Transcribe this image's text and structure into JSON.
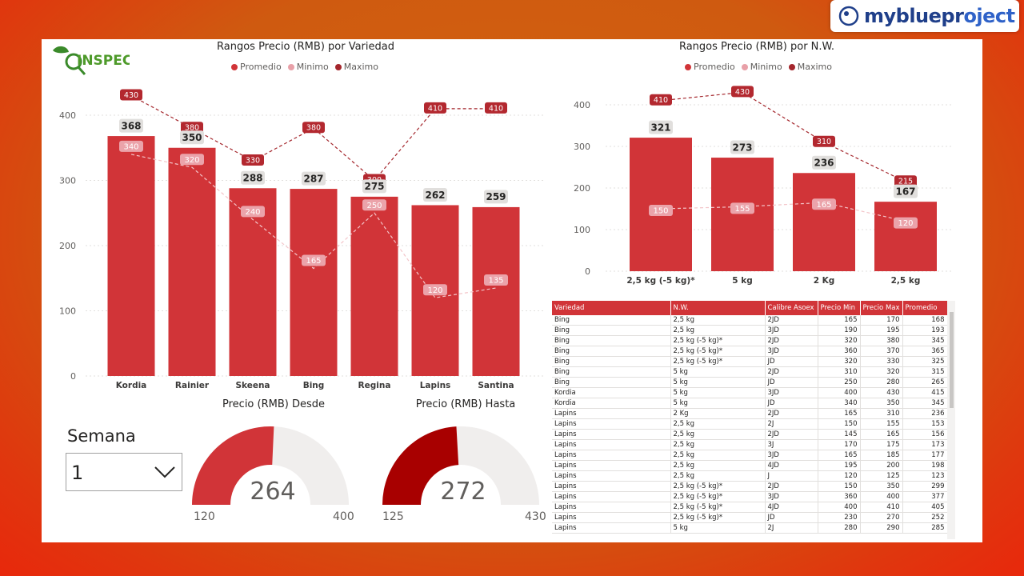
{
  "brand": {
    "name": "mybluepr",
    "name_bold": "oject"
  },
  "logo": {
    "text": "INSPEC"
  },
  "chart1": {
    "title": "Rangos Precio (RMB) por Variedad",
    "legend": [
      {
        "label": "Promedio",
        "color": "#d13438"
      },
      {
        "label": "Minimo",
        "color": "#e8a0a8"
      },
      {
        "label": "Maximo",
        "color": "#a4262c"
      }
    ]
  },
  "chart2": {
    "title": "Rangos Precio (RMB) por N.W.",
    "legend": [
      {
        "label": "Promedio",
        "color": "#d13438"
      },
      {
        "label": "Minimo",
        "color": "#e8a0a8"
      },
      {
        "label": "Maximo",
        "color": "#a4262c"
      }
    ]
  },
  "chart_data": [
    {
      "type": "bar",
      "title": "Rangos Precio (RMB) por Variedad",
      "categories": [
        "Kordia",
        "Rainier",
        "Skeena",
        "Bing",
        "Regina",
        "Lapins",
        "Santina"
      ],
      "series": [
        {
          "name": "Promedio",
          "type": "bar",
          "values": [
            368,
            350,
            288,
            287,
            275,
            262,
            259
          ]
        },
        {
          "name": "Minimo",
          "type": "line",
          "values": [
            340,
            320,
            240,
            165,
            250,
            120,
            135
          ]
        },
        {
          "name": "Maximo",
          "type": "line",
          "values": [
            430,
            380,
            330,
            380,
            300,
            410,
            410
          ]
        }
      ],
      "ylim": [
        0,
        430
      ],
      "yticks": [
        0,
        100,
        200,
        300,
        400
      ],
      "grid": true,
      "legend_position": "top"
    },
    {
      "type": "bar",
      "title": "Rangos Precio (RMB) por N.W.",
      "categories": [
        "2,5 kg (-5 kg)*",
        "5 kg",
        "2 Kg",
        "2,5 kg"
      ],
      "series": [
        {
          "name": "Promedio",
          "type": "bar",
          "values": [
            321,
            273,
            236,
            167
          ]
        },
        {
          "name": "Minimo",
          "type": "line",
          "values": [
            150,
            155,
            165,
            120
          ]
        },
        {
          "name": "Maximo",
          "type": "line",
          "values": [
            410,
            430,
            310,
            215
          ]
        }
      ],
      "ylim": [
        0,
        430
      ],
      "yticks": [
        0,
        100,
        200,
        300,
        400
      ],
      "grid": true,
      "legend_position": "top"
    }
  ],
  "slicer": {
    "label": "Semana",
    "value": "1"
  },
  "gauges": [
    {
      "title": "Precio (RMB) Desde",
      "value": 264,
      "min": 120,
      "max": 400,
      "color": "#d13438",
      "track": "#f0eeed"
    },
    {
      "title": "Precio (RMB) Hasta",
      "value": 272,
      "min": 125,
      "max": 430,
      "color": "#a80000",
      "track": "#f0eeed"
    }
  ],
  "table": {
    "columns": [
      "Variedad",
      "N.W.",
      "Calibre Asoex",
      "Precio Min",
      "Precio Max",
      "Promedio"
    ],
    "rows": [
      [
        "Bing",
        "2,5 kg",
        "2JD",
        "165",
        "170",
        "168"
      ],
      [
        "Bing",
        "2,5 kg",
        "3JD",
        "190",
        "195",
        "193"
      ],
      [
        "Bing",
        "2,5 kg (-5 kg)*",
        "2JD",
        "320",
        "380",
        "345"
      ],
      [
        "Bing",
        "2,5 kg (-5 kg)*",
        "3JD",
        "360",
        "370",
        "365"
      ],
      [
        "Bing",
        "2,5 kg (-5 kg)*",
        "JD",
        "320",
        "330",
        "325"
      ],
      [
        "Bing",
        "5 kg",
        "2JD",
        "310",
        "320",
        "315"
      ],
      [
        "Bing",
        "5 kg",
        "JD",
        "250",
        "280",
        "265"
      ],
      [
        "Kordia",
        "5 kg",
        "3JD",
        "400",
        "430",
        "415"
      ],
      [
        "Kordia",
        "5 kg",
        "JD",
        "340",
        "350",
        "345"
      ],
      [
        "Lapins",
        "2 Kg",
        "2JD",
        "165",
        "310",
        "236"
      ],
      [
        "Lapins",
        "2,5 kg",
        "2J",
        "150",
        "155",
        "153"
      ],
      [
        "Lapins",
        "2,5 kg",
        "2JD",
        "145",
        "165",
        "156"
      ],
      [
        "Lapins",
        "2,5 kg",
        "3J",
        "170",
        "175",
        "173"
      ],
      [
        "Lapins",
        "2,5 kg",
        "3JD",
        "165",
        "185",
        "177"
      ],
      [
        "Lapins",
        "2,5 kg",
        "4JD",
        "195",
        "200",
        "198"
      ],
      [
        "Lapins",
        "2,5 kg",
        "J",
        "120",
        "125",
        "123"
      ],
      [
        "Lapins",
        "2,5 kg (-5 kg)*",
        "2JD",
        "150",
        "350",
        "299"
      ],
      [
        "Lapins",
        "2,5 kg (-5 kg)*",
        "3JD",
        "360",
        "400",
        "377"
      ],
      [
        "Lapins",
        "2,5 kg (-5 kg)*",
        "4JD",
        "400",
        "410",
        "405"
      ],
      [
        "Lapins",
        "2,5 kg (-5 kg)*",
        "JD",
        "230",
        "270",
        "252"
      ],
      [
        "Lapins",
        "5 kg",
        "2J",
        "280",
        "290",
        "285"
      ]
    ]
  }
}
